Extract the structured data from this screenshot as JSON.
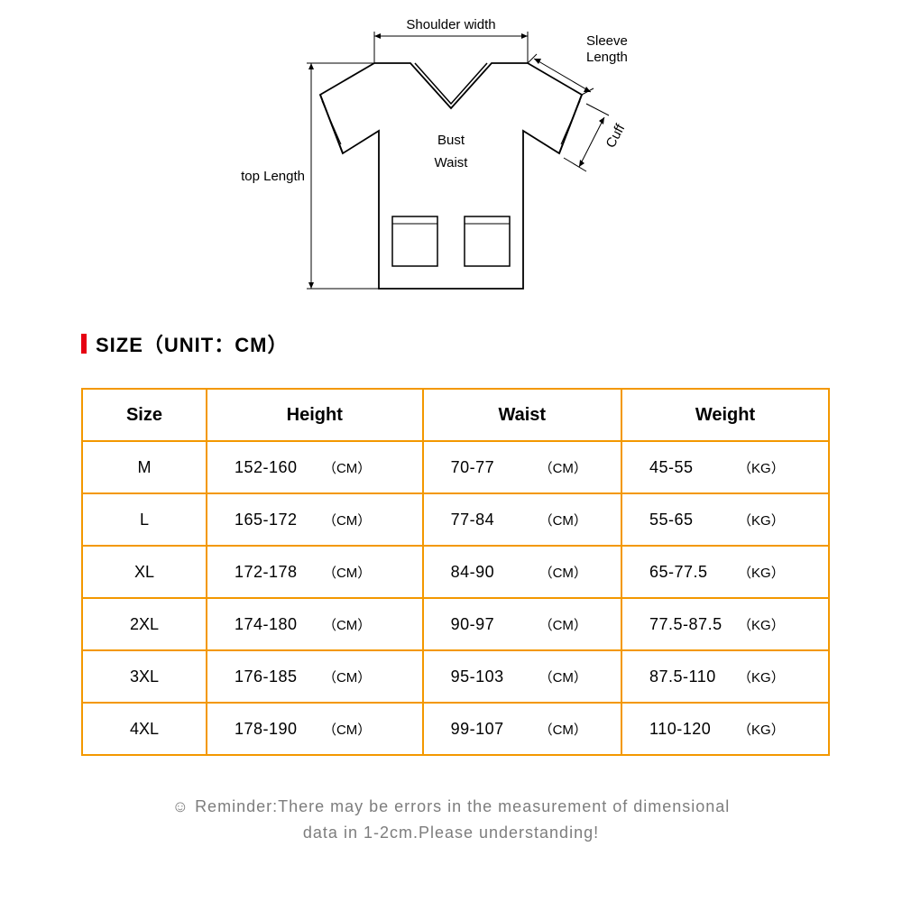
{
  "diagram": {
    "labels": {
      "shoulder_width": "Shoulder width",
      "sleeve_length_1": "Sleeve",
      "sleeve_length_2": "Length",
      "bust": "Bust",
      "waist": "Waist",
      "top_length": "top Length",
      "cuff": "Cuff"
    },
    "stroke": "#000000",
    "stroke_width": 1.5,
    "fill": "#ffffff"
  },
  "section_title": "SIZE（UNIT：CM）",
  "accent_red": "#e60012",
  "table": {
    "border_color": "#f39800",
    "columns": [
      "Size",
      "Height",
      "Waist",
      "Weight"
    ],
    "height_unit": "（CM）",
    "waist_unit": "（CM）",
    "weight_unit": "（KG）",
    "rows": [
      {
        "size": "M",
        "height": "152-160",
        "waist": "70-77",
        "weight": "45-55"
      },
      {
        "size": "L",
        "height": "165-172",
        "waist": "77-84",
        "weight": "55-65"
      },
      {
        "size": "XL",
        "height": "172-178",
        "waist": "84-90",
        "weight": "65-77.5"
      },
      {
        "size": "2XL",
        "height": "174-180",
        "waist": "90-97",
        "weight": "77.5-87.5"
      },
      {
        "size": "3XL",
        "height": "176-185",
        "waist": "95-103",
        "weight": "87.5-110"
      },
      {
        "size": "4XL",
        "height": "178-190",
        "waist": "99-107",
        "weight": "110-120"
      }
    ]
  },
  "reminder": {
    "icon": "☺",
    "line1": "Reminder:There may be errors in the measurement of dimensional",
    "line2": "data in 1-2cm.Please understanding!"
  }
}
